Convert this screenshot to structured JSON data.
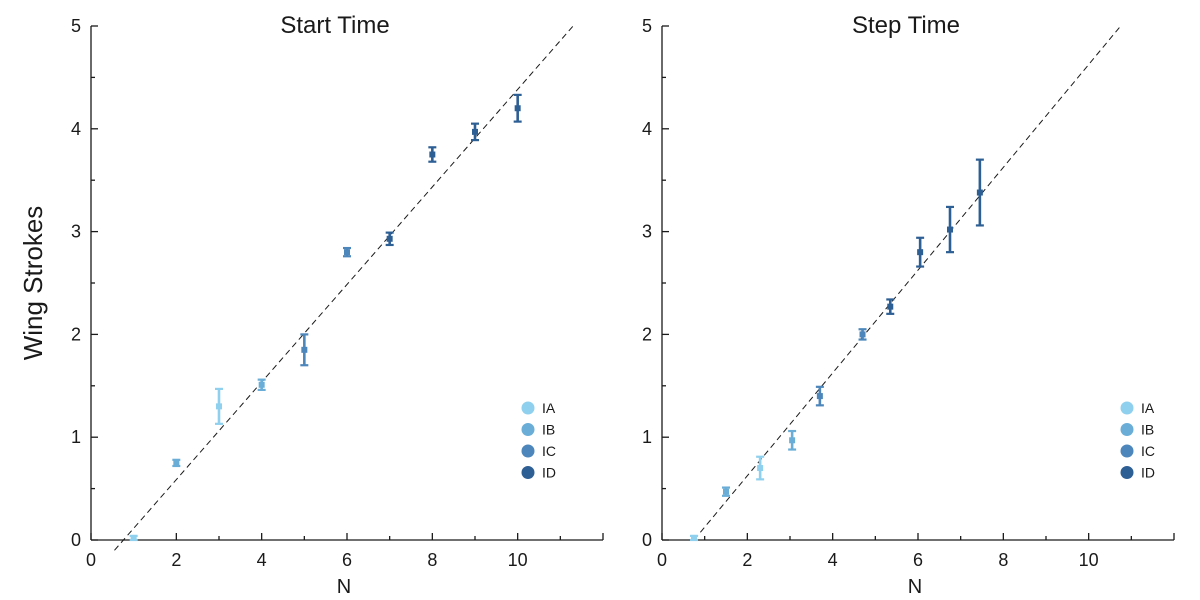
{
  "figure": {
    "ylabel": "Wing Strokes"
  },
  "chart_data": [
    {
      "type": "scatter",
      "title": "Start Time",
      "xlabel": "N",
      "ylabel": "Wing Strokes",
      "xlim": [
        0,
        12
      ],
      "ylim": [
        0,
        5
      ],
      "xticks": [
        0,
        2,
        4,
        6,
        8,
        10
      ],
      "yticks": [
        0,
        1,
        2,
        3,
        4,
        5
      ],
      "grid": false,
      "legend_position": "bottom-right",
      "fit_line": {
        "style": "dashed",
        "x": [
          0.55,
          11.3
        ],
        "y": [
          -0.1,
          5.0
        ]
      },
      "series": [
        {
          "name": "IA",
          "color": "#8fd0ef",
          "points": [
            {
              "x": 1,
              "y": 0.02,
              "err": 0.02
            },
            {
              "x": 3,
              "y": 1.3,
              "err": 0.17
            }
          ]
        },
        {
          "name": "IB",
          "color": "#6aaed8",
          "points": [
            {
              "x": 2,
              "y": 0.75,
              "err": 0.03
            },
            {
              "x": 4,
              "y": 1.51,
              "err": 0.05
            }
          ]
        },
        {
          "name": "IC",
          "color": "#4c86bb",
          "points": [
            {
              "x": 5,
              "y": 1.85,
              "err": 0.15
            },
            {
              "x": 6,
              "y": 2.8,
              "err": 0.04
            }
          ]
        },
        {
          "name": "ID",
          "color": "#2e5f94",
          "points": [
            {
              "x": 7,
              "y": 2.93,
              "err": 0.06
            },
            {
              "x": 8,
              "y": 3.75,
              "err": 0.07
            },
            {
              "x": 9,
              "y": 3.97,
              "err": 0.08
            },
            {
              "x": 10,
              "y": 4.2,
              "err": 0.13
            }
          ]
        }
      ]
    },
    {
      "type": "scatter",
      "title": "Step Time",
      "xlabel": "N",
      "ylabel": "",
      "xlim": [
        0,
        12
      ],
      "ylim": [
        0,
        5
      ],
      "xticks": [
        0,
        2,
        4,
        6,
        8,
        10
      ],
      "yticks": [
        0,
        1,
        2,
        3,
        4,
        5
      ],
      "grid": false,
      "legend_position": "bottom-right",
      "fit_line": {
        "style": "dashed",
        "x": [
          0.75,
          10.75
        ],
        "y": [
          0.0,
          5.0
        ]
      },
      "series": [
        {
          "name": "IA",
          "color": "#8fd0ef",
          "points": [
            {
              "x": 0.75,
              "y": 0.02,
              "err": 0.02
            },
            {
              "x": 2.3,
              "y": 0.7,
              "err": 0.11
            }
          ]
        },
        {
          "name": "IB",
          "color": "#6aaed8",
          "points": [
            {
              "x": 1.5,
              "y": 0.47,
              "err": 0.04
            },
            {
              "x": 3.05,
              "y": 0.97,
              "err": 0.09
            }
          ]
        },
        {
          "name": "IC",
          "color": "#4c86bb",
          "points": [
            {
              "x": 3.7,
              "y": 1.4,
              "err": 0.09
            },
            {
              "x": 4.7,
              "y": 2.0,
              "err": 0.05
            }
          ]
        },
        {
          "name": "ID",
          "color": "#2e5f94",
          "points": [
            {
              "x": 5.35,
              "y": 2.27,
              "err": 0.07
            },
            {
              "x": 6.05,
              "y": 2.8,
              "err": 0.14
            },
            {
              "x": 6.75,
              "y": 3.02,
              "err": 0.22
            },
            {
              "x": 7.45,
              "y": 3.38,
              "err": 0.32
            }
          ]
        }
      ]
    }
  ]
}
